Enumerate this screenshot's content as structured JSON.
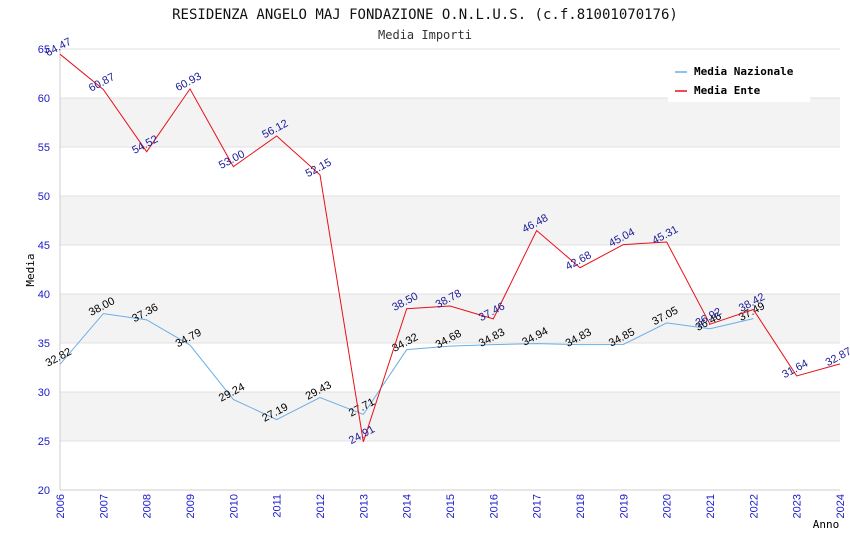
{
  "chart_data": {
    "type": "line",
    "title": "RESIDENZA ANGELO MAJ FONDAZIONE O.N.L.U.S. (c.f.81001070176)",
    "subtitle": "Media Importi",
    "xlabel": "Anno",
    "ylabel": "Media",
    "ylim": [
      20,
      65
    ],
    "yticks": [
      20,
      25,
      30,
      35,
      40,
      45,
      50,
      55,
      60,
      65
    ],
    "categories": [
      "2006",
      "2007",
      "2008",
      "2009",
      "2010",
      "2011",
      "2012",
      "2013",
      "2014",
      "2015",
      "2016",
      "2017",
      "2018",
      "2019",
      "2020",
      "2021",
      "2022",
      "2023",
      "2024"
    ],
    "series": [
      {
        "name": "Media Nazionale",
        "color": "#6aaee8",
        "values": [
          32.82,
          38.0,
          37.36,
          34.79,
          29.24,
          27.19,
          29.43,
          27.71,
          34.32,
          34.68,
          34.83,
          34.94,
          34.83,
          34.85,
          37.05,
          36.46,
          37.49,
          null,
          null
        ],
        "labels": [
          "32.82",
          "38.00",
          "37.36",
          "34.79",
          "29.24",
          "27.19",
          "29.43",
          "27.71",
          "34.32",
          "34.68",
          "34.83",
          "34.94",
          "34.83",
          "34.85",
          "37.05",
          "36.46",
          "37.49",
          "",
          ""
        ]
      },
      {
        "name": "Media Ente",
        "color": "#e8101a",
        "values": [
          64.47,
          60.87,
          54.52,
          60.93,
          53.0,
          56.12,
          52.15,
          24.91,
          38.5,
          38.78,
          37.46,
          46.48,
          42.68,
          45.04,
          45.31,
          36.92,
          38.42,
          31.64,
          32.87
        ],
        "labels": [
          "64.47",
          "60.87",
          "54.52",
          "60.93",
          "53.00",
          "56.12",
          "52.15",
          "24.91",
          "38.50",
          "38.78",
          "37.46",
          "46.48",
          "42.68",
          "45.04",
          "45.31",
          "36.92",
          "38.42",
          "31.64",
          "32.87"
        ]
      }
    ],
    "grid": true,
    "legend": "top-right"
  }
}
